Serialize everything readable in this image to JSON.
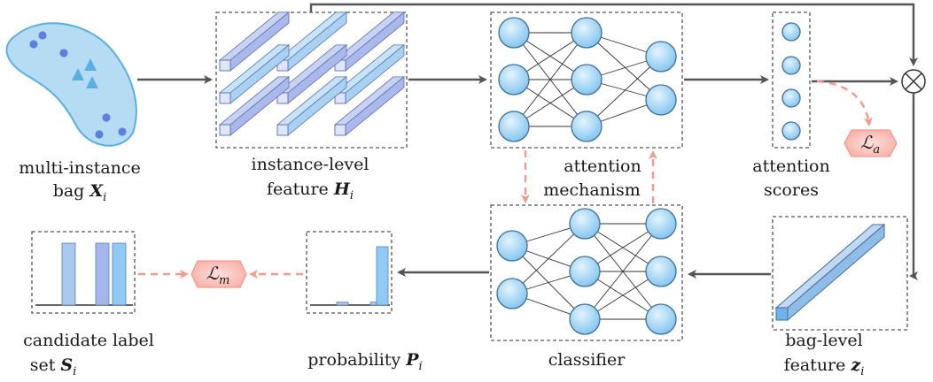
{
  "labels": {
    "bag": {
      "line1": "multi-instance",
      "line2_text": "bag",
      "line2_symbol": "X",
      "line2_sub": "i"
    },
    "instance_feature": {
      "line1": "instance-level",
      "line2_text": "feature",
      "line2_symbol": "H",
      "line2_sub": "i"
    },
    "attention_mechanism": {
      "line1": "attention",
      "line2": "mechanism"
    },
    "attention_scores": {
      "line1": "attention",
      "line2": "scores"
    },
    "bag_feature": {
      "line1": "bag-level",
      "line2_text": "feature",
      "line2_symbol": "z",
      "line2_sub": "i"
    },
    "classifier": {
      "line1": "classifier"
    },
    "probability": {
      "text": "probability",
      "symbol": "P",
      "sub": "i"
    },
    "candidate_set": {
      "line1": "candidate label",
      "line2_text": "set",
      "line2_symbol": "S",
      "line2_sub": "i"
    }
  },
  "losses": {
    "attention_loss": {
      "symbol": "ℒ",
      "sub": "a"
    },
    "main_loss": {
      "symbol": "ℒ",
      "sub": "m"
    }
  },
  "operator": {
    "symbol": "⊗"
  },
  "colors": {
    "bag_fill": "#b5dcf3",
    "bag_stroke": "#5aaee0",
    "instance_dot": "#5f7fdc",
    "neuron_fill": "#9dd6f5",
    "neuron_stroke": "#3f6e9b",
    "loss_fill": "#fbc6bf",
    "loss_stroke": "#f39a8f",
    "solid_arrow": "#555555",
    "dashed_arrow": "#f39a8f"
  },
  "probability_bars": [
    0.1,
    0.1,
    1.0
  ],
  "candidate_bars": [
    1.0,
    1.0,
    1.0
  ]
}
